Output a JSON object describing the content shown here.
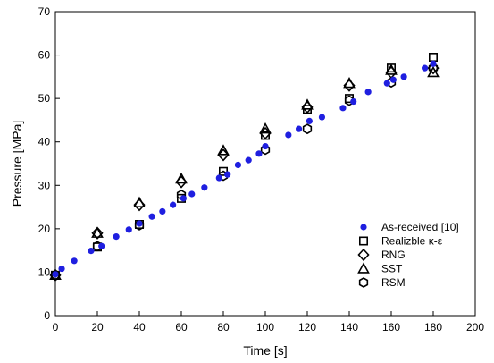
{
  "chart_data": {
    "type": "scatter",
    "xlabel": "Time [s]",
    "ylabel": "Pressure [MPa]",
    "xlim": [
      0,
      200
    ],
    "ylim": [
      0,
      70
    ],
    "xticks": [
      0,
      20,
      40,
      60,
      80,
      100,
      120,
      140,
      160,
      180,
      200
    ],
    "yticks": [
      0,
      10,
      20,
      30,
      40,
      50,
      60,
      70
    ],
    "grid": false,
    "legend_position": "bottom-right",
    "series": [
      {
        "name": "As-received [10]",
        "marker": "filled-circle",
        "color": "#1f1fe0",
        "x": [
          0,
          3,
          9,
          17,
          22,
          29,
          35,
          40,
          46,
          51,
          56,
          61,
          65,
          71,
          78,
          82,
          87,
          92,
          97,
          100,
          111,
          116,
          121,
          127,
          137,
          142,
          149,
          158,
          161,
          166,
          176,
          180
        ],
        "y": [
          9.5,
          10.8,
          12.6,
          14.9,
          16.0,
          18.2,
          19.8,
          21.2,
          22.8,
          24.0,
          25.5,
          27.0,
          28.0,
          29.5,
          31.7,
          32.5,
          34.7,
          35.8,
          37.3,
          39.0,
          41.6,
          43.0,
          44.8,
          45.7,
          47.8,
          49.3,
          51.5,
          53.5,
          54.3,
          55.0,
          57.0,
          58.0
        ]
      },
      {
        "name": "Realizble κ-ε",
        "marker": "square",
        "x": [
          0,
          20,
          40,
          60,
          80,
          100,
          120,
          140,
          160,
          180
        ],
        "y": [
          9.3,
          15.8,
          21.0,
          27.0,
          33.2,
          41.5,
          47.5,
          50.0,
          57.0,
          59.5
        ]
      },
      {
        "name": "RNG",
        "marker": "diamond",
        "x": [
          0,
          20,
          40,
          60,
          80,
          100,
          120,
          140,
          160,
          180
        ],
        "y": [
          9.3,
          19.0,
          25.5,
          30.8,
          37.0,
          42.0,
          48.0,
          53.0,
          56.0,
          57.0
        ]
      },
      {
        "name": "SST",
        "marker": "triangle",
        "x": [
          0,
          20,
          40,
          60,
          80,
          100,
          120,
          140,
          160,
          180
        ],
        "y": [
          9.3,
          19.0,
          26.0,
          31.5,
          38.0,
          43.0,
          48.5,
          53.5,
          56.5,
          56.0
        ]
      },
      {
        "name": "RSM",
        "marker": "hexagon",
        "x": [
          0,
          20,
          40,
          60,
          80,
          100,
          120,
          140,
          160,
          180
        ],
        "y": [
          9.3,
          16.0,
          20.8,
          27.8,
          32.2,
          38.2,
          43.0,
          49.5,
          53.7,
          57.0
        ]
      }
    ]
  }
}
